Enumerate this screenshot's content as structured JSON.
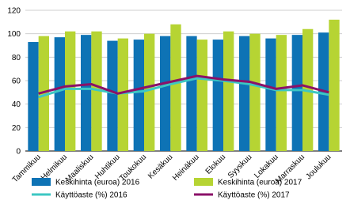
{
  "chart_data": {
    "type": "bar_line",
    "categories": [
      "Tammikuu",
      "Helmikuu",
      "Maaliskuu",
      "Huhtikuu",
      "Toukokuu",
      "Kesäkuu",
      "Heinäkuu",
      "Elokuu",
      "Syyskuu",
      "Lokakuu",
      "Marraskuu",
      "Joulukuu"
    ],
    "series": [
      {
        "name": "Keskihinta (euroa) 2016",
        "type": "bar",
        "color": "#0e73b5",
        "values": [
          93,
          97,
          99,
          94,
          95,
          98,
          98,
          95,
          98,
          96,
          99,
          101
        ]
      },
      {
        "name": "Keskihinta (euroa) 2017",
        "type": "bar",
        "color": "#b6d433",
        "values": [
          98,
          102,
          102,
          96,
          100,
          108,
          95,
          102,
          100,
          99,
          104,
          112
        ]
      },
      {
        "name": "Käyttöaste (%) 2016",
        "type": "line",
        "color": "#3dc7c3",
        "values": [
          46,
          53,
          53,
          49,
          51,
          57,
          62,
          60,
          57,
          52,
          52,
          48
        ]
      },
      {
        "name": "Käyttöaste (%) 2017",
        "type": "line",
        "color": "#8b1168",
        "values": [
          49,
          55,
          57,
          49,
          54,
          59,
          64,
          61,
          59,
          53,
          56,
          50
        ]
      }
    ],
    "ylim": [
      0,
      120
    ],
    "yticks": [
      0,
      20,
      40,
      60,
      80,
      100,
      120
    ],
    "grid": true
  }
}
